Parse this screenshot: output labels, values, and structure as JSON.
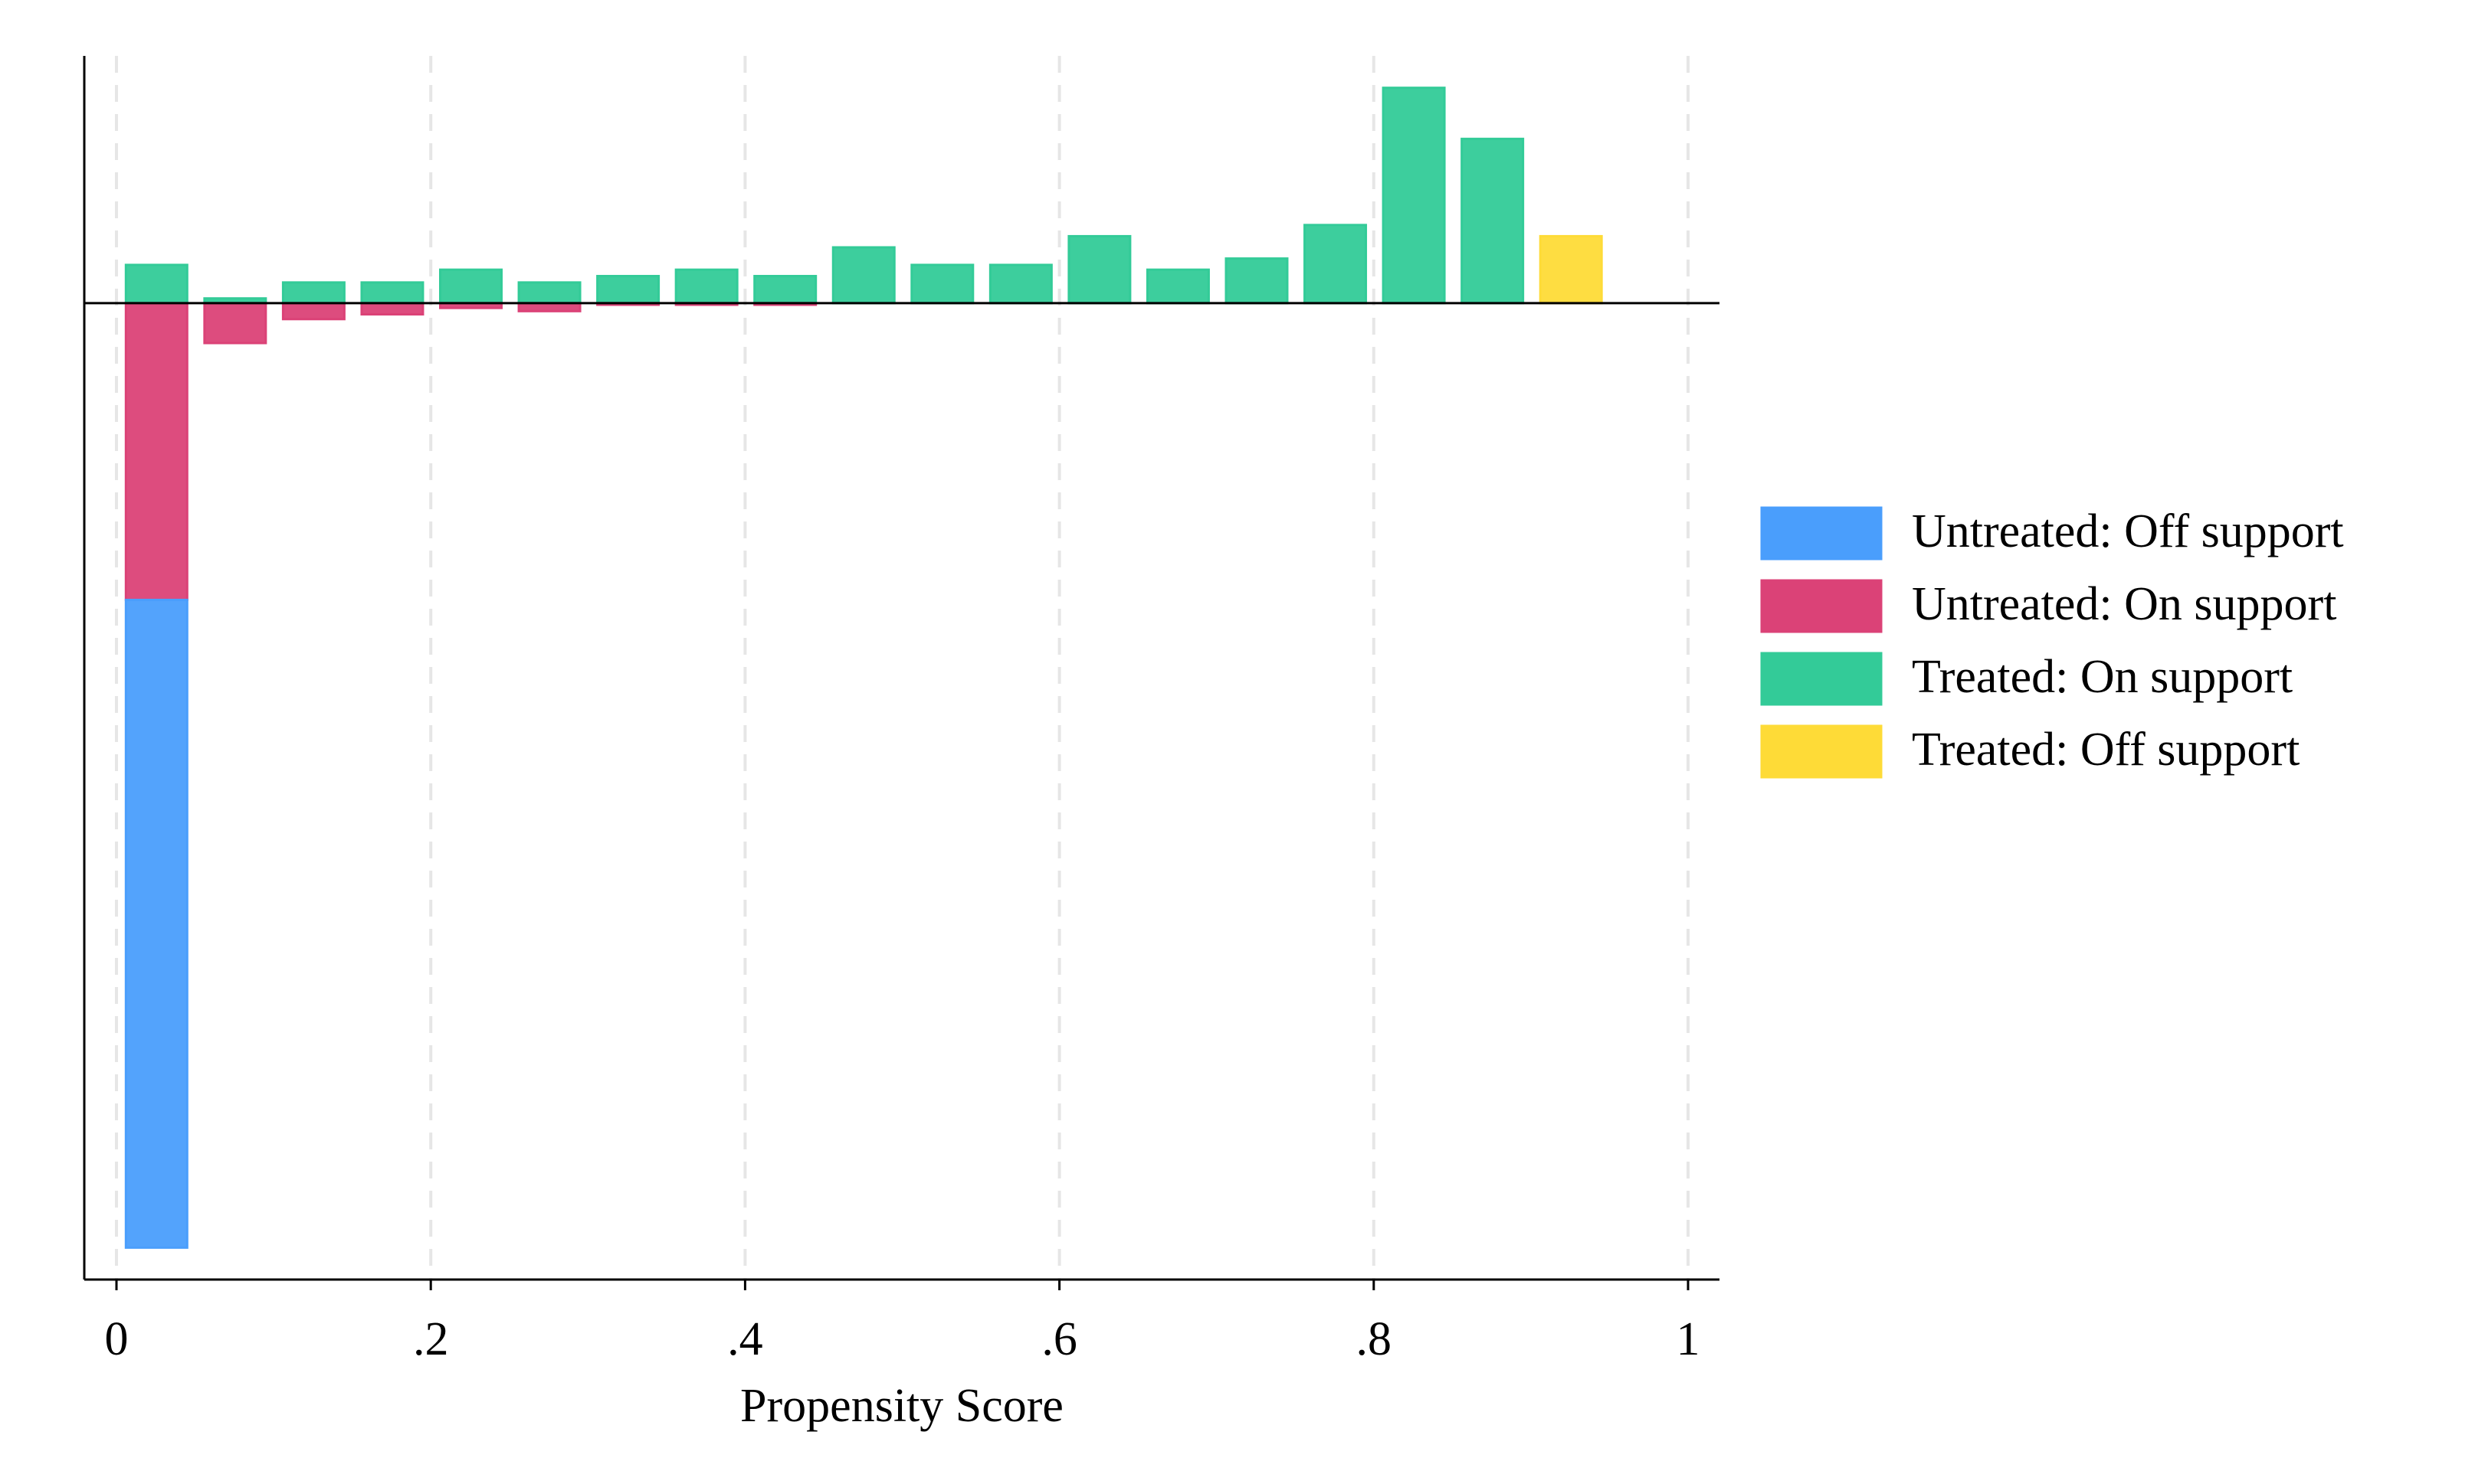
{
  "chart_data": {
    "type": "mirrored_histogram",
    "x_label": "Propensity Score",
    "bins": [
      0,
      0.05,
      0.1,
      0.15,
      0.2,
      0.25,
      0.3,
      0.35,
      0.4,
      0.45,
      0.5,
      0.55,
      0.6,
      0.65,
      0.7,
      0.75,
      0.8,
      0.85,
      0.9,
      0.95
    ],
    "series": [
      {
        "name": "Untreated: Off support",
        "color": "#4a9efc",
        "values": [
          -40.6,
          0,
          0,
          0,
          0,
          0,
          0,
          0,
          0,
          0,
          0,
          0,
          0,
          0,
          0,
          0,
          0,
          0,
          0
        ]
      },
      {
        "name": "Untreated: On support",
        "color": "#db4277",
        "values": [
          -18.6,
          -2.5,
          -1.0,
          -0.7,
          -0.3,
          -0.5,
          -0.1,
          -0.1,
          -0.1,
          0,
          0,
          0,
          0,
          0,
          0,
          0,
          0,
          0,
          0
        ]
      },
      {
        "name": "Treated: On support",
        "color": "#33cb98",
        "values": [
          2.4,
          0.3,
          1.3,
          1.3,
          2.1,
          1.3,
          1.7,
          2.1,
          1.7,
          3.5,
          2.4,
          2.4,
          4.2,
          2.1,
          2.8,
          4.9,
          13.5,
          10.3,
          0
        ]
      },
      {
        "name": "Treated: Off support",
        "color": "#fedb37",
        "values": [
          0,
          0,
          0,
          0,
          0,
          0,
          0,
          0,
          0,
          0,
          0,
          0,
          0,
          0,
          0,
          0,
          0,
          0,
          4.2
        ]
      }
    ],
    "xlim": [
      0,
      1
    ],
    "xticks": [
      0,
      {
        "value": 0.2,
        "label": ".2"
      },
      {
        "value": 0.4,
        "label": ".4"
      },
      {
        "value": 0.6,
        "label": ".6"
      },
      {
        "value": 0.8,
        "label": ".8"
      },
      1
    ],
    "ylim": [
      -61.2,
      15.5
    ],
    "grid": true,
    "legend": "right"
  }
}
